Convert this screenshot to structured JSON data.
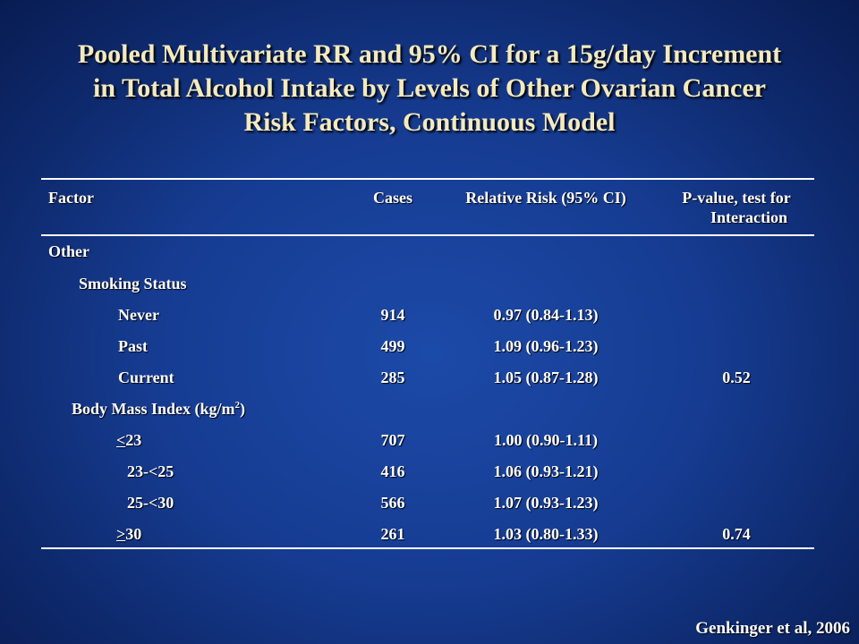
{
  "title": {
    "line1": "Pooled Multivariate RR and 95% CI for a 15g/day Increment",
    "line2": "in Total Alcohol Intake by Levels of Other Ovarian Cancer",
    "line3": "Risk Factors, Continuous Model"
  },
  "headers": {
    "factor": "Factor",
    "cases": "Cases",
    "rr": "Relative Risk (95% CI)",
    "pvalue_line1": "P-value, test for",
    "pvalue_line2": "Interaction"
  },
  "sections": {
    "other": "Other",
    "smoking": "Smoking Status",
    "bmi_label": "Body Mass Index (kg/m",
    "bmi_sup": "2",
    "bmi_close": ")"
  },
  "smoking_rows": [
    {
      "label": "Never",
      "cases": "914",
      "rr": "0.97 (0.84-1.13)",
      "p": ""
    },
    {
      "label": "Past",
      "cases": "499",
      "rr": "1.09 (0.96-1.23)",
      "p": ""
    },
    {
      "label": "Current",
      "cases": "285",
      "rr": "1.05 (0.87-1.28)",
      "p": "0.52"
    }
  ],
  "bmi_rows": [
    {
      "label_u": "<",
      "label": "23",
      "cases": "707",
      "rr": "1.00 (0.90-1.11)",
      "p": ""
    },
    {
      "label_u": "",
      "label": "23-<25",
      "cases": "416",
      "rr": "1.06 (0.93-1.21)",
      "p": ""
    },
    {
      "label_u": "",
      "label": "25-<30",
      "cases": "566",
      "rr": "1.07 (0.93-1.23)",
      "p": ""
    },
    {
      "label_u": ">",
      "label": "30",
      "cases": "261",
      "rr": "1.03 (0.80-1.33)",
      "p": "0.74"
    }
  ],
  "credit": "Genkinger et al, 2006"
}
